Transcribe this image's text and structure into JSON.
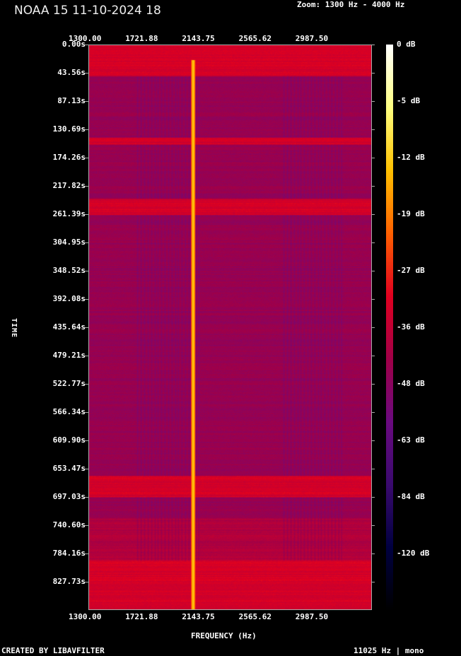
{
  "header": {
    "title": "NOAA 15 11-10-2024 18",
    "zoom": "Zoom: 1300 Hz - 4000 Hz"
  },
  "footer": {
    "left": "CREATED BY LIBAVFILTER",
    "right": "11025 Hz | mono"
  },
  "chart_data": {
    "type": "heatmap",
    "xlabel": "FREQUENCY (Hz)",
    "ylabel": "TIME",
    "xlim": [
      1300,
      4000
    ],
    "x_ticks": [
      "1300.00",
      "1721.88",
      "2143.75",
      "2565.62",
      "2987.50"
    ],
    "y_ticks": [
      "0.00s",
      "43.56s",
      "87.13s",
      "130.69s",
      "174.26s",
      "217.82s",
      "261.39s",
      "304.95s",
      "348.52s",
      "392.08s",
      "435.64s",
      "479.21s",
      "522.77s",
      "566.34s",
      "609.90s",
      "653.47s",
      "697.03s",
      "740.60s",
      "784.16s",
      "827.73s"
    ],
    "colorbar_ticks": [
      "0 dB",
      "-5 dB",
      "-12 dB",
      "-19 dB",
      "-27 dB",
      "-36 dB",
      "-48 dB",
      "-63 dB",
      "-84 dB",
      "-120 dB"
    ],
    "colormap": [
      "#000000",
      "#000040",
      "#3a0a6e",
      "#6a0a80",
      "#a00048",
      "#e00020",
      "#ff6000",
      "#ffc000",
      "#ffff80",
      "#ffffff"
    ],
    "carrier_frequency_hz": 2400,
    "strong_bands_s": [
      [
        0,
        43
      ],
      [
        130,
        140
      ],
      [
        217,
        240
      ],
      [
        610,
        640
      ],
      [
        730,
        860
      ]
    ]
  }
}
